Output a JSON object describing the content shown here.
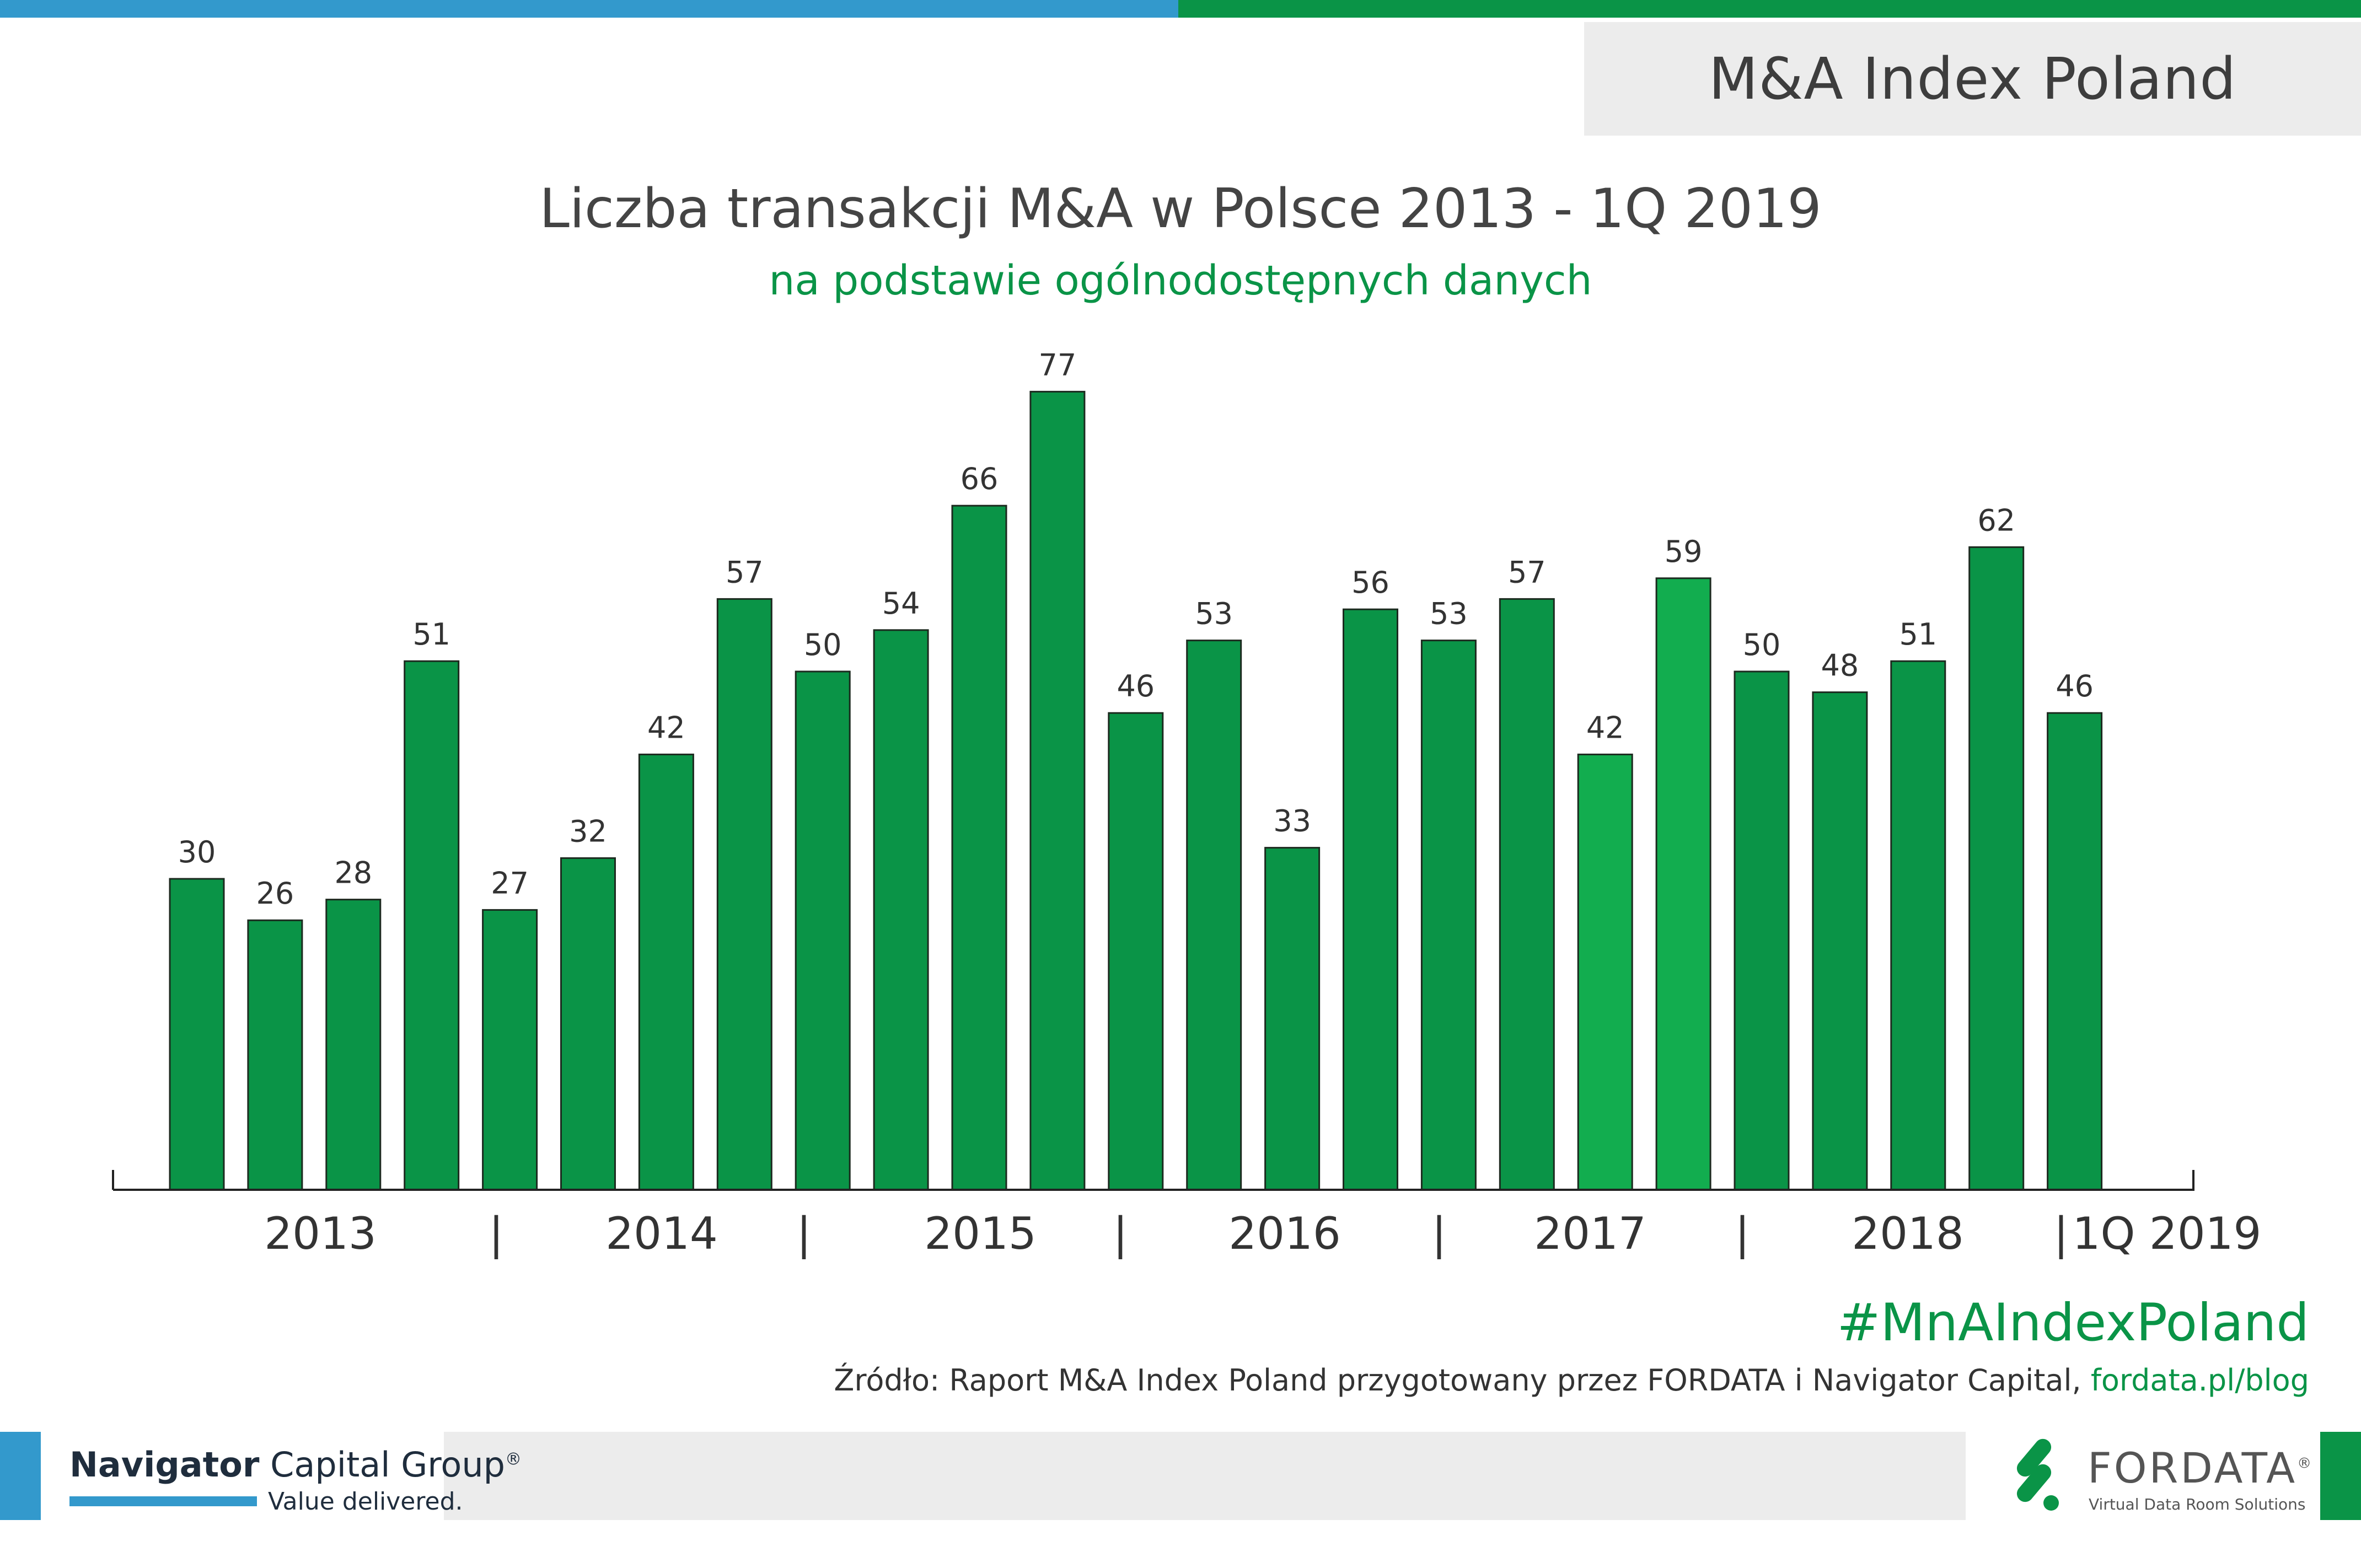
{
  "header": {
    "title": "M&A Index Poland"
  },
  "chart_data": {
    "type": "bar",
    "title": "Liczba transakcji M&A w Polsce 2013 - 1Q 2019",
    "subtitle": "na podstawie ogólnodostępnych danych",
    "values": [
      30,
      26,
      28,
      51,
      27,
      32,
      42,
      57,
      50,
      54,
      66,
      77,
      46,
      53,
      33,
      56,
      53,
      57,
      42,
      59,
      50,
      48,
      51,
      62,
      46
    ],
    "groups": [
      "2013",
      "2014",
      "2015",
      "2016",
      "2017",
      "2018",
      "1Q 2019"
    ],
    "separators": [
      "|",
      "|",
      "|",
      "|",
      "|",
      "|"
    ],
    "bar_color": "#0a9447",
    "highlight_color": "#12ad4f"
  },
  "footer": {
    "hashtag": "#MnAIndexPoland",
    "source_text": "Źródło: Raport M&A Index Poland przygotowany przez FORDATA i Navigator Capital, ",
    "source_link": "fordata.pl/blog"
  },
  "logos": {
    "navigator_bold": "Navigator",
    "navigator_rest": " Capital Group",
    "navigator_reg": "®",
    "navigator_tagline": "Value delivered.",
    "fordata_name": "FORDATA",
    "fordata_reg": "®",
    "fordata_tagline": "Virtual Data Room Solutions"
  },
  "colors": {
    "blue": "#3399cc",
    "green": "#0a9447",
    "gray": "#ececec"
  }
}
